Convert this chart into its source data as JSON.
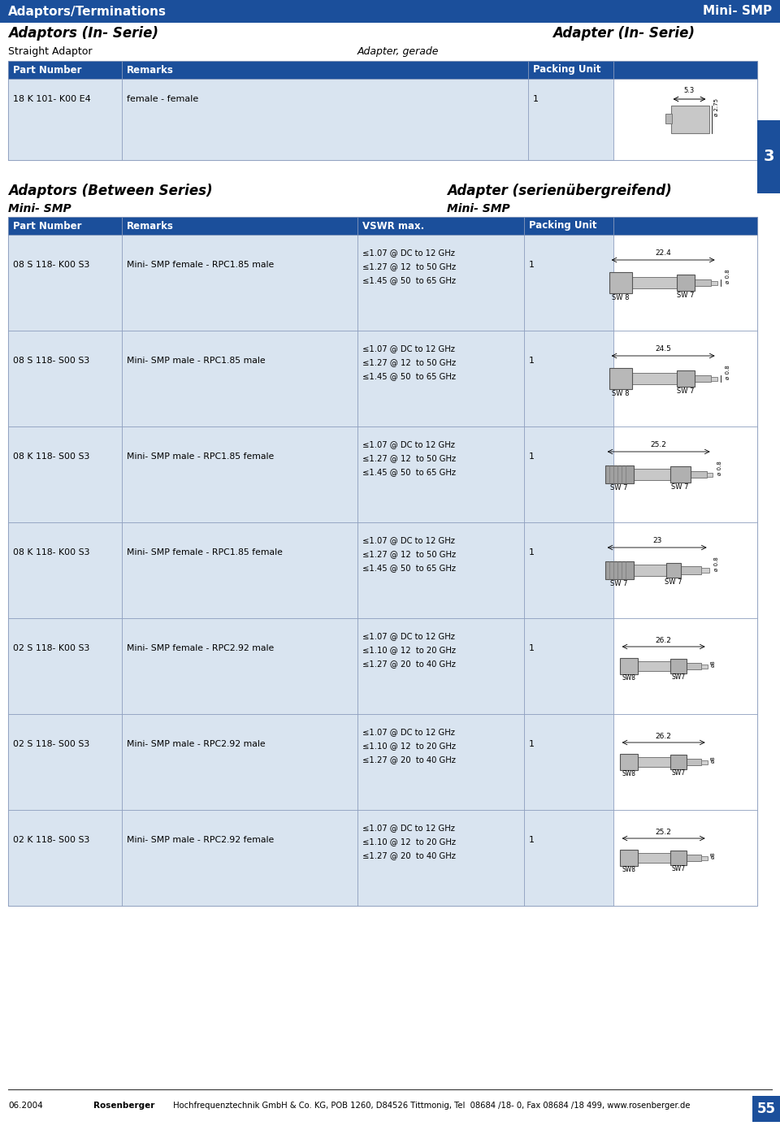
{
  "header_bg": "#1b4f9b",
  "header_left": "Adaptors/Terminations",
  "header_right": "Mini- SMP",
  "section1_left": "Adaptors (In- Serie)",
  "section1_right": "Adapter (In- Serie)",
  "subsection1": "Straight Adaptor",
  "subsection1_de": "Adapter, gerade",
  "table1_headers": [
    "Part Number",
    "Remarks",
    "Packing Unit"
  ],
  "table1_row": [
    "18 K 101- K00 E4",
    "female - female",
    "1"
  ],
  "section2_left": "Adaptors (Between Series)",
  "section2_right": "Adapter (serienübergreifend)",
  "subsection2_left": "Mini- SMP",
  "subsection2_right": "Mini- SMP",
  "table2_headers": [
    "Part Number",
    "Remarks",
    "VSWR max.",
    "Packing Unit"
  ],
  "table2_rows": [
    {
      "part": "08 S 118- K00 S3",
      "remarks": "Mini- SMP female - RPC1.85 male",
      "vswr": "≤1.07 @ DC to 12 GHz\n≤1.27 @ 12  to 50 GHz\n≤1.45 @ 50  to 65 GHz",
      "packing": "1",
      "dim": "22.4",
      "sw_left": "SW 8",
      "sw_right": "SW 7",
      "type": "rpc185_sw8sw7"
    },
    {
      "part": "08 S 118- S00 S3",
      "remarks": "Mini- SMP male - RPC1.85 male",
      "vswr": "≤1.07 @ DC to 12 GHz\n≤1.27 @ 12  to 50 GHz\n≤1.45 @ 50  to 65 GHz",
      "packing": "1",
      "dim": "24.5",
      "sw_left": "SW 8",
      "sw_right": "SW 7",
      "type": "rpc185_sw8sw7"
    },
    {
      "part": "08 K 118- S00 S3",
      "remarks": "Mini- SMP male - RPC1.85 female",
      "vswr": "≤1.07 @ DC to 12 GHz\n≤1.27 @ 12  to 50 GHz\n≤1.45 @ 50  to 65 GHz",
      "packing": "1",
      "dim": "25.2",
      "sw_left": "SW 7",
      "sw_right": "SW 7",
      "type": "rpc185_sw7sw7_left"
    },
    {
      "part": "08 K 118- K00 S3",
      "remarks": "Mini- SMP female - RPC1.85 female",
      "vswr": "≤1.07 @ DC to 12 GHz\n≤1.27 @ 12  to 50 GHz\n≤1.45 @ 50  to 65 GHz",
      "packing": "1",
      "dim": "23",
      "sw_left": "SW 7",
      "sw_right": "SW 7",
      "type": "rpc185_sw7sw7_right"
    },
    {
      "part": "02 S 118- K00 S3",
      "remarks": "Mini- SMP female - RPC2.92 male",
      "vswr": "≤1.07 @ DC to 12 GHz\n≤1.10 @ 12  to 20 GHz\n≤1.27 @ 20  to 40 GHz",
      "packing": "1",
      "dim": "26.2",
      "sw_left": "SW8",
      "sw_right": "SW7",
      "type": "rpc292"
    },
    {
      "part": "02 S 118- S00 S3",
      "remarks": "Mini- SMP male - RPC2.92 male",
      "vswr": "≤1.07 @ DC to 12 GHz\n≤1.10 @ 12  to 20 GHz\n≤1.27 @ 20  to 40 GHz",
      "packing": "1",
      "dim": "26.2",
      "sw_left": "SW8",
      "sw_right": "SW7",
      "type": "rpc292"
    },
    {
      "part": "02 K 118- S00 S3",
      "remarks": "Mini- SMP male - RPC2.92 female",
      "vswr": "≤1.07 @ DC to 12 GHz\n≤1.10 @ 12  to 20 GHz\n≤1.27 @ 20  to 40 GHz",
      "packing": "1",
      "dim": "25.2",
      "sw_left": "SW8",
      "sw_right": "SW7",
      "type": "rpc292"
    }
  ],
  "footer_date": "06.2004",
  "footer_company": "Rosenberger",
  "footer_address": " Hochfrequenztechnik GmbH & Co. KG, POB 1260, D84526 Tittmonig, Tel  08684 /18- 0, Fax 08684 /18 499, www.rosenberger.de",
  "footer_page": "55",
  "table_bg_light": "#d9e4f0",
  "col_header_bg": "#1b4f9b",
  "side_tab_bg": "#1b4f9b",
  "side_tab_text": "3"
}
